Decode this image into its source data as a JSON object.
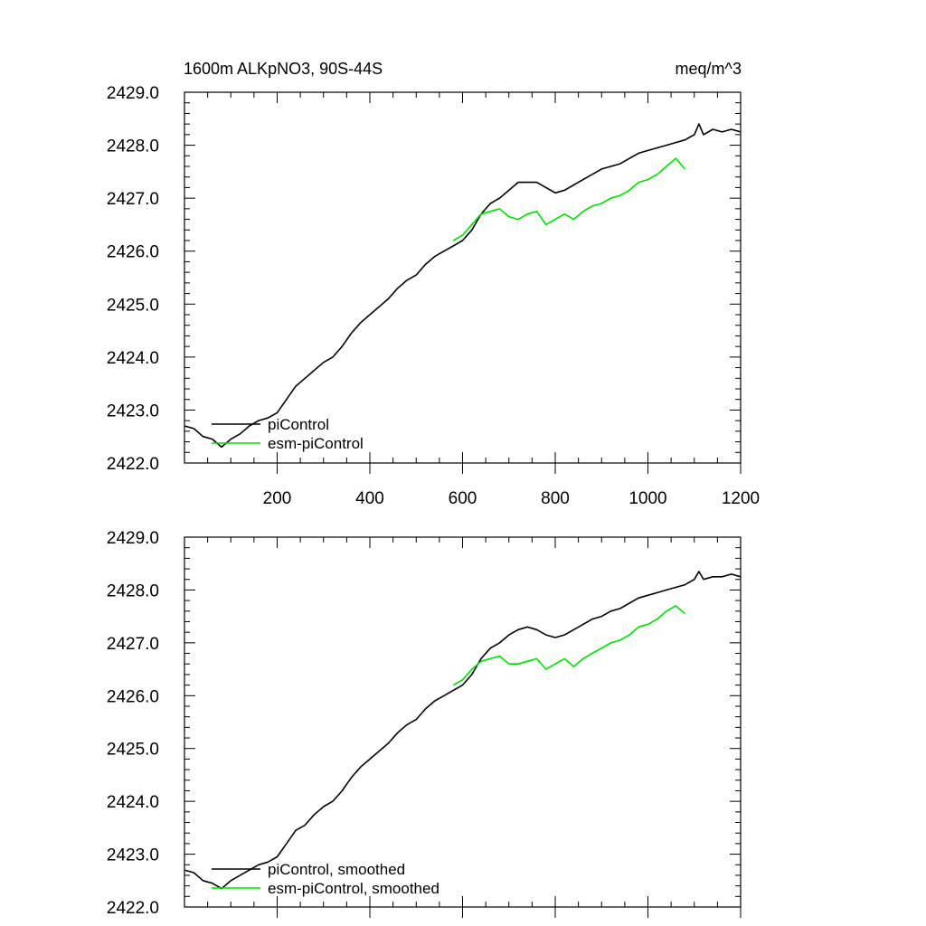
{
  "chart_data": [
    {
      "type": "line",
      "title": "1600m ALKpNO3, 90S-44S",
      "units": "meq/m^3",
      "xlabel": "",
      "ylabel": "",
      "xlim": [
        0,
        1200
      ],
      "ylim": [
        2422.0,
        2429.0
      ],
      "x_ticks": [
        200,
        400,
        600,
        800,
        1000,
        1200
      ],
      "x_tick_labels": [
        "200",
        "400",
        "600",
        "800",
        "1000",
        "1200"
      ],
      "y_ticks": [
        2422.0,
        2423.0,
        2424.0,
        2425.0,
        2426.0,
        2427.0,
        2428.0,
        2429.0
      ],
      "y_tick_labels": [
        "2422.0",
        "2423.0",
        "2424.0",
        "2425.0",
        "2426.0",
        "2427.0",
        "2428.0",
        "2429.0"
      ],
      "grid": false,
      "legend_position": "bottom-left",
      "series": [
        {
          "name": "piControl",
          "color": "#000000",
          "x": [
            0,
            20,
            40,
            60,
            80,
            100,
            120,
            140,
            160,
            180,
            200,
            220,
            240,
            260,
            280,
            300,
            320,
            340,
            360,
            380,
            400,
            420,
            440,
            460,
            480,
            500,
            520,
            540,
            560,
            580,
            600,
            620,
            640,
            660,
            680,
            700,
            720,
            740,
            760,
            780,
            800,
            820,
            840,
            860,
            880,
            900,
            920,
            940,
            960,
            980,
            1000,
            1020,
            1040,
            1060,
            1080,
            1100,
            1110,
            1120,
            1140,
            1160,
            1180,
            1200
          ],
          "y": [
            2422.7,
            2422.65,
            2422.5,
            2422.45,
            2422.3,
            2422.45,
            2422.55,
            2422.7,
            2422.8,
            2422.85,
            2422.95,
            2423.2,
            2423.45,
            2423.6,
            2423.75,
            2423.9,
            2424.0,
            2424.2,
            2424.45,
            2424.65,
            2424.8,
            2424.95,
            2425.1,
            2425.3,
            2425.45,
            2425.55,
            2425.75,
            2425.9,
            2426.0,
            2426.1,
            2426.2,
            2426.4,
            2426.7,
            2426.9,
            2427.0,
            2427.15,
            2427.3,
            2427.3,
            2427.3,
            2427.2,
            2427.1,
            2427.15,
            2427.25,
            2427.35,
            2427.45,
            2427.55,
            2427.6,
            2427.65,
            2427.75,
            2427.85,
            2427.9,
            2427.95,
            2428.0,
            2428.05,
            2428.1,
            2428.2,
            2428.4,
            2428.2,
            2428.3,
            2428.25,
            2428.3,
            2428.25
          ]
        },
        {
          "name": "esm-piControl",
          "color": "#00dd00",
          "x": [
            580,
            600,
            620,
            640,
            660,
            680,
            700,
            720,
            740,
            760,
            780,
            800,
            820,
            840,
            860,
            880,
            900,
            920,
            940,
            960,
            980,
            1000,
            1020,
            1040,
            1060,
            1080
          ],
          "y": [
            2426.2,
            2426.3,
            2426.5,
            2426.7,
            2426.75,
            2426.8,
            2426.65,
            2426.6,
            2426.7,
            2426.75,
            2426.5,
            2426.6,
            2426.7,
            2426.6,
            2426.75,
            2426.85,
            2426.9,
            2427.0,
            2427.05,
            2427.15,
            2427.3,
            2427.35,
            2427.45,
            2427.6,
            2427.75,
            2427.55
          ]
        }
      ]
    },
    {
      "type": "line",
      "title": "",
      "xlabel": "",
      "ylabel": "",
      "xlim": [
        0,
        1200
      ],
      "ylim": [
        2422.0,
        2429.0
      ],
      "x_ticks": [
        200,
        400,
        600,
        800,
        1000,
        1200
      ],
      "y_ticks": [
        2422.0,
        2423.0,
        2424.0,
        2425.0,
        2426.0,
        2427.0,
        2428.0,
        2429.0
      ],
      "y_tick_labels": [
        "2422.0",
        "2423.0",
        "2424.0",
        "2425.0",
        "2426.0",
        "2427.0",
        "2428.0",
        "2429.0"
      ],
      "grid": false,
      "legend_position": "bottom-left",
      "series": [
        {
          "name": "piControl, smoothed",
          "color": "#000000",
          "x": [
            0,
            20,
            40,
            60,
            80,
            100,
            120,
            140,
            160,
            180,
            200,
            220,
            240,
            260,
            280,
            300,
            320,
            340,
            360,
            380,
            400,
            420,
            440,
            460,
            480,
            500,
            520,
            540,
            560,
            580,
            600,
            620,
            640,
            660,
            680,
            700,
            720,
            740,
            760,
            780,
            800,
            820,
            840,
            860,
            880,
            900,
            920,
            940,
            960,
            980,
            1000,
            1020,
            1040,
            1060,
            1080,
            1100,
            1110,
            1120,
            1140,
            1160,
            1180,
            1200
          ],
          "y": [
            2422.7,
            2422.65,
            2422.5,
            2422.45,
            2422.35,
            2422.5,
            2422.6,
            2422.7,
            2422.8,
            2422.85,
            2422.95,
            2423.2,
            2423.45,
            2423.55,
            2423.75,
            2423.9,
            2424.0,
            2424.2,
            2424.45,
            2424.65,
            2424.8,
            2424.95,
            2425.1,
            2425.3,
            2425.45,
            2425.55,
            2425.75,
            2425.9,
            2426.0,
            2426.1,
            2426.2,
            2426.4,
            2426.7,
            2426.9,
            2427.0,
            2427.15,
            2427.25,
            2427.3,
            2427.25,
            2427.15,
            2427.1,
            2427.15,
            2427.25,
            2427.35,
            2427.45,
            2427.5,
            2427.6,
            2427.65,
            2427.75,
            2427.85,
            2427.9,
            2427.95,
            2428.0,
            2428.05,
            2428.1,
            2428.2,
            2428.35,
            2428.2,
            2428.25,
            2428.25,
            2428.3,
            2428.25
          ]
        },
        {
          "name": "esm-piControl, smoothed",
          "color": "#00dd00",
          "x": [
            580,
            600,
            620,
            640,
            660,
            680,
            700,
            720,
            740,
            760,
            780,
            800,
            820,
            840,
            860,
            880,
            900,
            920,
            940,
            960,
            980,
            1000,
            1020,
            1040,
            1060,
            1080
          ],
          "y": [
            2426.2,
            2426.3,
            2426.5,
            2426.65,
            2426.7,
            2426.75,
            2426.6,
            2426.6,
            2426.65,
            2426.7,
            2426.5,
            2426.6,
            2426.7,
            2426.55,
            2426.7,
            2426.8,
            2426.9,
            2427.0,
            2427.05,
            2427.15,
            2427.3,
            2427.35,
            2427.45,
            2427.6,
            2427.7,
            2427.55
          ]
        }
      ]
    }
  ]
}
